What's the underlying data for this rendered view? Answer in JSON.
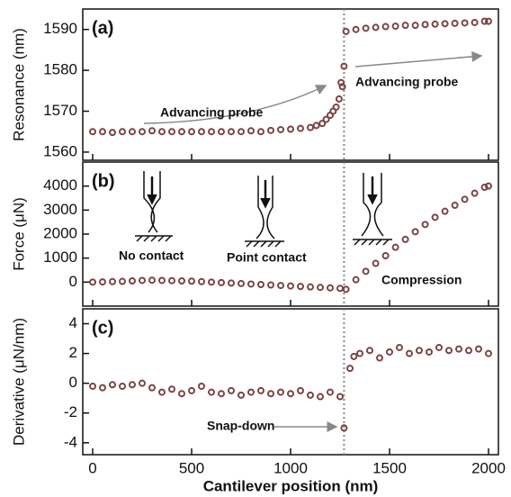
{
  "chart_data": [
    {
      "type": "scatter",
      "label": "(a)",
      "ylabel": "Resonance (nm)",
      "x": [
        0,
        50,
        100,
        150,
        200,
        250,
        300,
        350,
        400,
        450,
        500,
        550,
        600,
        650,
        700,
        750,
        800,
        850,
        900,
        950,
        1000,
        1050,
        1100,
        1130,
        1160,
        1180,
        1200,
        1215,
        1230,
        1245,
        1255,
        1262,
        1270,
        1280,
        1330,
        1380,
        1430,
        1480,
        1530,
        1580,
        1630,
        1680,
        1730,
        1780,
        1830,
        1880,
        1930,
        1980,
        2000
      ],
      "values": [
        1565,
        1565,
        1564.8,
        1565,
        1565,
        1565,
        1565.2,
        1565,
        1565,
        1565,
        1565,
        1565,
        1565,
        1565,
        1565,
        1565,
        1565.2,
        1565,
        1565.3,
        1565.5,
        1565.6,
        1565.8,
        1566,
        1566.5,
        1567,
        1568,
        1569,
        1570,
        1571,
        1573,
        1577,
        1576,
        1581,
        1589.5,
        1590,
        1590.3,
        1590.5,
        1590.7,
        1590.8,
        1591,
        1591,
        1591.2,
        1591.3,
        1591.4,
        1591.5,
        1591.6,
        1591.7,
        1592,
        1592
      ],
      "color": "#7a4444",
      "xlim": [
        -50,
        2050
      ],
      "xticks": [
        0,
        500,
        1000,
        1500,
        2000
      ],
      "ylim": [
        1558,
        1595
      ],
      "yticks": [
        1560,
        1570,
        1580,
        1590
      ],
      "vline": 1270,
      "annotations": [
        "Advancing probe",
        "Advancing probe"
      ]
    },
    {
      "type": "scatter",
      "label": "(b)",
      "ylabel": "Force (μN)",
      "x": [
        0,
        50,
        100,
        150,
        200,
        250,
        300,
        350,
        400,
        450,
        500,
        550,
        600,
        650,
        700,
        750,
        800,
        850,
        900,
        950,
        1000,
        1050,
        1100,
        1150,
        1200,
        1250,
        1280,
        1330,
        1380,
        1430,
        1480,
        1530,
        1580,
        1630,
        1680,
        1730,
        1780,
        1830,
        1880,
        1930,
        1980,
        2000
      ],
      "values": [
        0,
        10,
        20,
        30,
        50,
        70,
        80,
        70,
        60,
        50,
        40,
        20,
        0,
        -20,
        -40,
        -60,
        -80,
        -100,
        -120,
        -140,
        -160,
        -180,
        -200,
        -220,
        -240,
        -260,
        -300,
        100,
        450,
        780,
        1100,
        1450,
        1780,
        2100,
        2400,
        2700,
        2950,
        3200,
        3450,
        3700,
        3950,
        4000
      ],
      "color": "#7a4444",
      "xlim": [
        -50,
        2050
      ],
      "xticks": [
        0,
        500,
        1000,
        1500,
        2000
      ],
      "ylim": [
        -1000,
        5000
      ],
      "yticks": [
        0,
        1000,
        2000,
        3000,
        4000
      ],
      "vline": 1270,
      "annotations": [
        "No contact",
        "Point contact",
        "Compression"
      ]
    },
    {
      "type": "scatter",
      "label": "(c)",
      "ylabel": "Derivative (μN/nm)",
      "xlabel": "Cantilever position (nm)",
      "x": [
        0,
        50,
        100,
        150,
        200,
        250,
        300,
        350,
        400,
        450,
        500,
        550,
        600,
        650,
        700,
        750,
        800,
        850,
        900,
        950,
        1000,
        1050,
        1100,
        1150,
        1200,
        1250,
        1270,
        1300,
        1320,
        1350,
        1400,
        1450,
        1500,
        1550,
        1600,
        1650,
        1700,
        1750,
        1800,
        1850,
        1900,
        1950,
        2000
      ],
      "values": [
        -0.2,
        -0.3,
        -0.1,
        -0.2,
        -0.1,
        0,
        -0.3,
        -0.6,
        -0.4,
        -0.7,
        -0.5,
        -0.2,
        -0.6,
        -0.7,
        -0.5,
        -0.8,
        -0.6,
        -0.5,
        -0.7,
        -0.6,
        -0.7,
        -0.5,
        -0.8,
        -0.9,
        -0.6,
        -0.9,
        -3,
        1,
        1.8,
        2,
        2.2,
        1.7,
        2.1,
        2.4,
        2,
        2.2,
        2.1,
        2.4,
        2.2,
        2.3,
        2.2,
        2.3,
        2
      ],
      "color": "#7a4444",
      "xlim": [
        -50,
        2050
      ],
      "xticks": [
        0,
        500,
        1000,
        1500,
        2000
      ],
      "ylim": [
        -4.8,
        5
      ],
      "yticks": [
        -4,
        -2,
        0,
        2,
        4
      ],
      "vline": 1270,
      "annotations": [
        "Snap-down"
      ]
    }
  ]
}
